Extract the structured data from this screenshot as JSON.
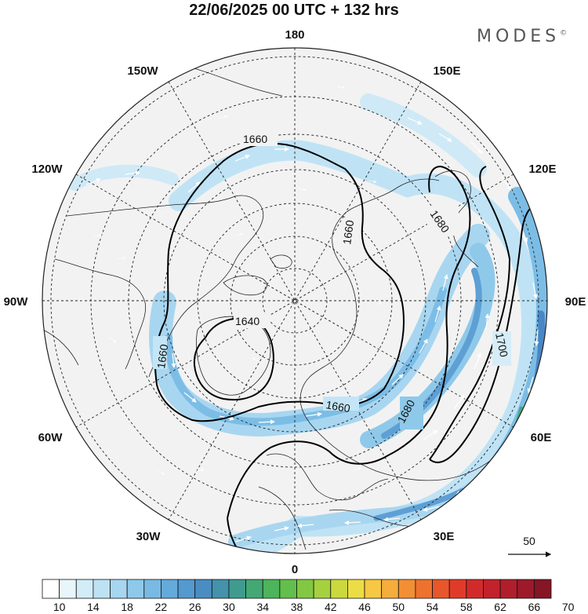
{
  "title": "22/06/2025  00 UTC  + 132 hrs",
  "brand": "MODES",
  "brand_mark": "©",
  "longitude_labels": [
    {
      "text": "180",
      "lon": 180
    },
    {
      "text": "150E",
      "lon": 150
    },
    {
      "text": "120E",
      "lon": 120
    },
    {
      "text": "90E",
      "lon": 90
    },
    {
      "text": "60E",
      "lon": 60
    },
    {
      "text": "30E",
      "lon": 30
    },
    {
      "text": "0",
      "lon": 0
    },
    {
      "text": "30W",
      "lon": -30
    },
    {
      "text": "60W",
      "lon": -60
    },
    {
      "text": "90W",
      "lon": -90
    },
    {
      "text": "120W",
      "lon": -120
    },
    {
      "text": "150W",
      "lon": -150
    }
  ],
  "latitude_circles": [
    80,
    70,
    60,
    50,
    40,
    30,
    20
  ],
  "contours": [
    {
      "value": 1640,
      "label": "1640"
    },
    {
      "value": 1660,
      "label": "1660"
    },
    {
      "value": 1680,
      "label": "1680"
    },
    {
      "value": 1700,
      "label": "1700"
    }
  ],
  "reference_vector": {
    "label": "50"
  },
  "colorbar": {
    "labels": [
      "10",
      "14",
      "18",
      "22",
      "26",
      "30",
      "34",
      "38",
      "42",
      "46",
      "50",
      "54",
      "58",
      "62",
      "66",
      "70"
    ],
    "colors": [
      "#ffffff",
      "#e8f6fc",
      "#d2ecf8",
      "#bde2f4",
      "#a6d6f0",
      "#8fc9ea",
      "#78bae3",
      "#64aadb",
      "#5499cf",
      "#4a8dc2",
      "#4492ab",
      "#409b8f",
      "#43a874",
      "#4cb45b",
      "#63bf4b",
      "#82c842",
      "#a6d13e",
      "#cbd93e",
      "#ecdd45",
      "#f6c843",
      "#f5ad3c",
      "#f28f34",
      "#ee722e",
      "#e8562b",
      "#e03b2a",
      "#d22a2b",
      "#c2222c",
      "#b01e2c",
      "#9c1a2a",
      "#861525"
    ]
  }
}
